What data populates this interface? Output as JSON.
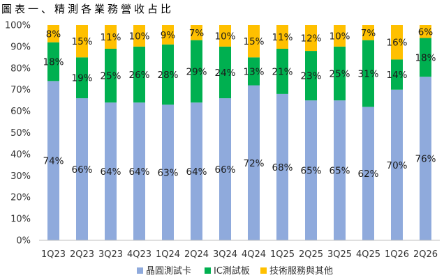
{
  "chart_data": {
    "type": "bar",
    "stacked": true,
    "percent": true,
    "title": "圖表一、精測各業務營收占比",
    "xlabel": "",
    "ylabel": "",
    "ylim": [
      0,
      100
    ],
    "yticks": [
      "0%",
      "10%",
      "20%",
      "30%",
      "40%",
      "50%",
      "60%",
      "70%",
      "80%",
      "90%",
      "100%"
    ],
    "grid": false,
    "legend_position": "bottom",
    "categories": [
      "1Q23",
      "2Q23",
      "3Q23",
      "4Q23",
      "1Q24",
      "2Q24",
      "3Q24",
      "4Q24",
      "1Q25",
      "2Q25",
      "3Q25",
      "4Q25",
      "1Q26",
      "2Q26"
    ],
    "series": [
      {
        "name": "晶圓測試卡",
        "color": "#8faadc",
        "values": [
          74,
          66,
          64,
          64,
          63,
          64,
          66,
          72,
          68,
          65,
          65,
          62,
          70,
          76
        ]
      },
      {
        "name": "IC測試板",
        "color": "#00b050",
        "values": [
          18,
          19,
          25,
          26,
          28,
          29,
          24,
          13,
          21,
          23,
          25,
          31,
          14,
          18
        ]
      },
      {
        "name": "技術服務與其他",
        "color": "#ffc000",
        "values": [
          8,
          15,
          11,
          10,
          9,
          7,
          10,
          15,
          11,
          12,
          10,
          7,
          16,
          6
        ]
      }
    ]
  }
}
